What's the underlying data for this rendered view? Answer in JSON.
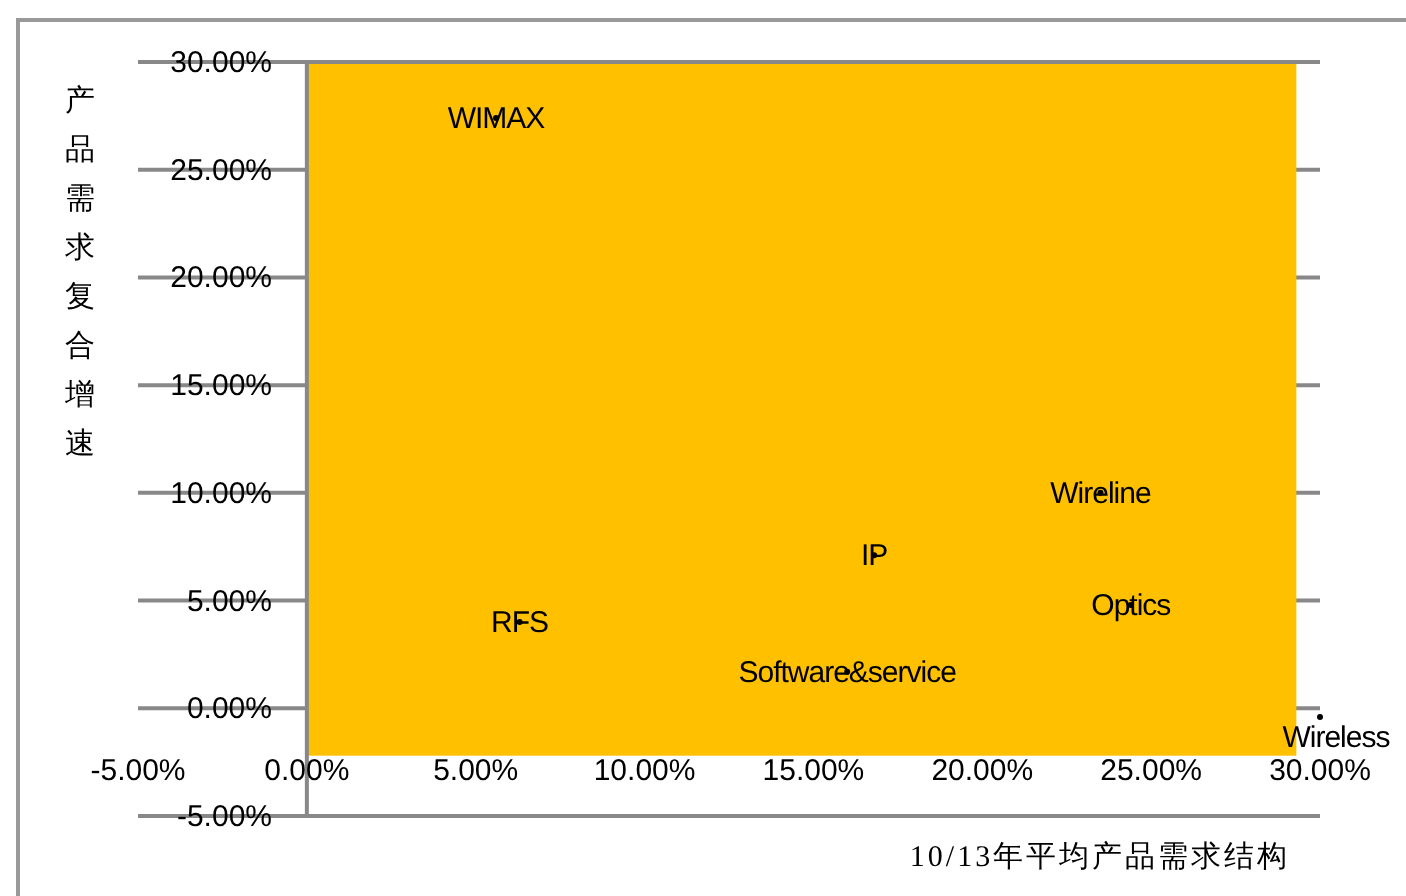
{
  "chart_data": {
    "type": "scatter",
    "xlabel": "10/13年平均产品需求结构",
    "ylabel": "产品需求复合增速",
    "xlim": [
      -5,
      30
    ],
    "ylim": [
      -5,
      30
    ],
    "xticks": [
      {
        "value": -5,
        "label": "-5.00%"
      },
      {
        "value": 0,
        "label": "0.00%"
      },
      {
        "value": 5,
        "label": "5.00%"
      },
      {
        "value": 10,
        "label": "10.00%"
      },
      {
        "value": 15,
        "label": "15.00%"
      },
      {
        "value": 20,
        "label": "20.00%"
      },
      {
        "value": 25,
        "label": "25.00%"
      },
      {
        "value": 30,
        "label": "30.00%"
      }
    ],
    "yticks": [
      {
        "value": -5,
        "label": "-5.00%"
      },
      {
        "value": 0,
        "label": "0.00%"
      },
      {
        "value": 5,
        "label": "5.00%"
      },
      {
        "value": 10,
        "label": "10.00%"
      },
      {
        "value": 15,
        "label": "15.00%"
      },
      {
        "value": 20,
        "label": "20.00%"
      },
      {
        "value": 25,
        "label": "25.00%"
      },
      {
        "value": 30,
        "label": "30.00%"
      }
    ],
    "bands": [
      {
        "axis": "x",
        "from": 0,
        "to": 29.3,
        "color": "#ffc000"
      }
    ],
    "marker": "circle",
    "grid": "y",
    "series": [
      {
        "color": "#000000",
        "x": [
          5.6,
          6.3,
          16.8,
          16.0,
          23.5,
          24.4,
          30.0
        ],
        "values": [
          27.4,
          4.0,
          7.1,
          1.7,
          10.0,
          4.8,
          -0.4
        ],
        "value_labels": [
          "WIMAX",
          "RFS",
          "IP",
          "Software&service",
          "Wireline",
          "Optics",
          "Wireless"
        ]
      }
    ]
  }
}
